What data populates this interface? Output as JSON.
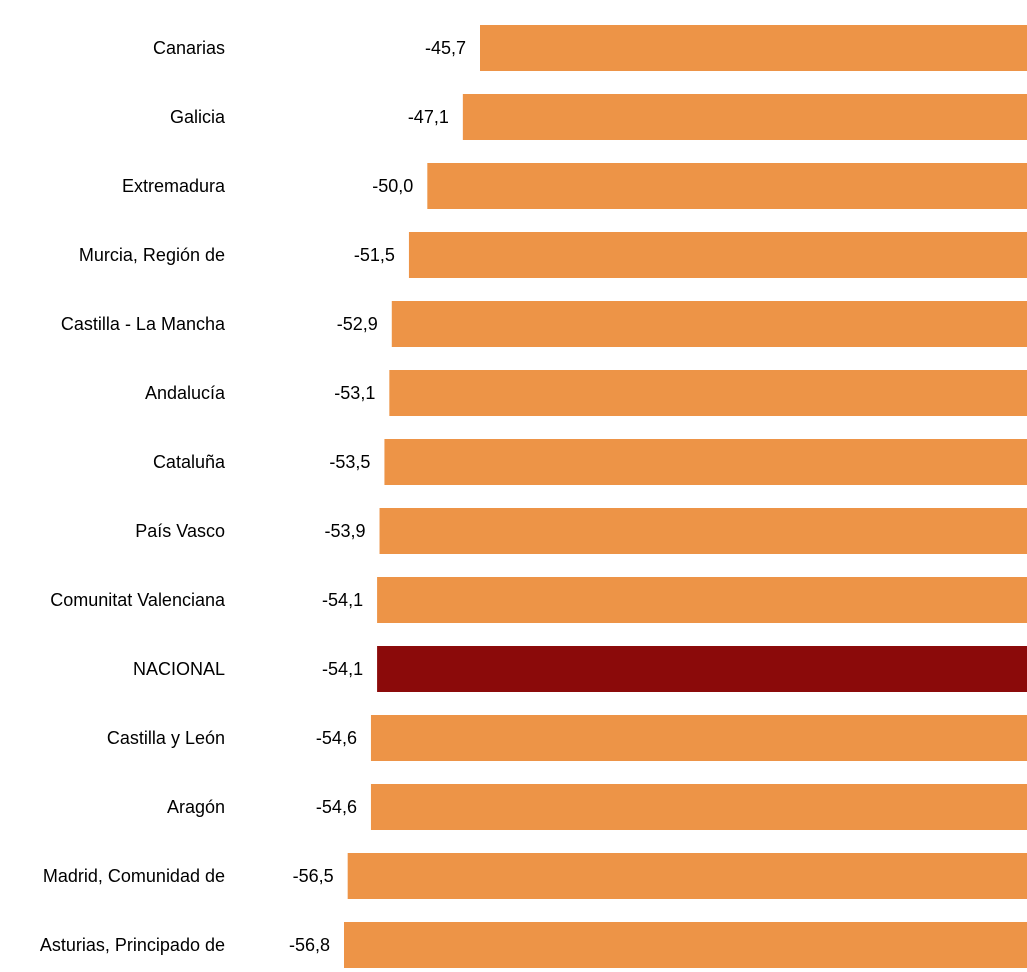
{
  "chart_data": {
    "type": "bar",
    "orientation": "horizontal",
    "categories": [
      "Canarias",
      "Galicia",
      "Extremadura",
      "Murcia, Región de",
      "Castilla - La Mancha",
      "Andalucía",
      "Cataluña",
      "País Vasco",
      "Comunitat Valenciana",
      "NACIONAL",
      "Castilla y León",
      "Aragón",
      "Madrid, Comunidad de",
      "Asturias, Principado de"
    ],
    "values": [
      -45.7,
      -47.1,
      -50.0,
      -51.5,
      -52.9,
      -53.1,
      -53.5,
      -53.9,
      -54.1,
      -54.1,
      -54.6,
      -54.6,
      -56.5,
      -56.8
    ],
    "value_labels": [
      "-45,7",
      "-47,1",
      "-50,0",
      "-51,5",
      "-52,9",
      "-53,1",
      "-53,5",
      "-53,9",
      "-54,1",
      "-54,1",
      "-54,6",
      "-54,6",
      "-56,5",
      "-56,8"
    ],
    "highlight_category": "NACIONAL",
    "colors": {
      "bar": "#ED9447",
      "highlight": "#8B0A0A"
    },
    "title": "",
    "xlabel": "",
    "ylabel": "",
    "grid": false,
    "legend": "none"
  }
}
